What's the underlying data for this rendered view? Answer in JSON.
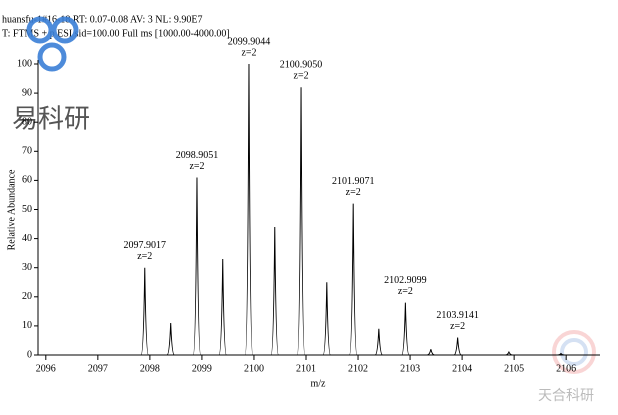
{
  "chart_data": {
    "type": "spectrum",
    "header": [
      "huansfu-1#16-18 RT: 0.07-0.08 AV: 3 NL: 9.90E7",
      "T: FTMS + p ESI sid=100.00 Full ms [1000.00-4000.00]"
    ],
    "xlabel": "m/z",
    "ylabel": "Relative Abundance",
    "x": [
      2097.9017,
      2098.4,
      2098.9051,
      2099.4,
      2099.9044,
      2100.4,
      2100.905,
      2101.4,
      2101.9071,
      2102.4,
      2102.9099,
      2103.4,
      2103.9141,
      2104.9,
      2105.9
    ],
    "values": [
      30,
      11,
      61,
      33,
      100,
      44,
      92,
      25,
      52,
      9,
      18,
      2,
      6,
      1,
      0.5
    ],
    "peak_labels": [
      "2097.9017",
      null,
      "2098.9051",
      null,
      "2099.9044",
      null,
      "2100.9050",
      null,
      "2101.9071",
      null,
      "2102.9099",
      null,
      "2103.9141",
      null,
      null
    ],
    "charges": [
      "z=2",
      null,
      "z=2",
      null,
      "z=2",
      null,
      "z=2",
      null,
      "z=2",
      null,
      "z=2",
      null,
      "z=2",
      null,
      null
    ],
    "color": "#000000",
    "xlim": [
      2095.85,
      2106.65
    ],
    "xticks": [
      2096,
      2097,
      2098,
      2099,
      2100,
      2101,
      2102,
      2103,
      2104,
      2105,
      2106
    ],
    "ylim": [
      0,
      100
    ],
    "yticks": [
      0,
      10,
      20,
      30,
      40,
      50,
      60,
      70,
      80,
      90,
      100
    ]
  },
  "watermarks": [
    "易科研",
    "天合科研"
  ]
}
